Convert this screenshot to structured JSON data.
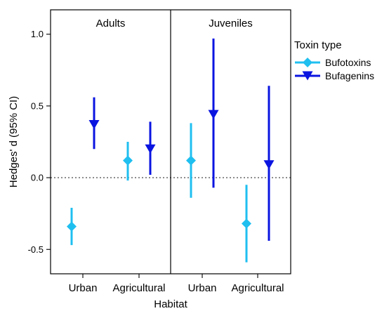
{
  "chart_data": {
    "type": "scatter",
    "subtype": "point-and-errorbar (dot-whisker) faceted by life stage",
    "xlabel": "Habitat",
    "ylabel": "Hedges' d (95% CI)",
    "categories": [
      "Urban",
      "Agricultural"
    ],
    "ylim": [
      -0.67,
      1.17
    ],
    "yticks": [
      {
        "value": 1.0,
        "label": "1.0"
      },
      {
        "value": 0.5,
        "label": "0.5"
      },
      {
        "value": 0.0,
        "label": "0.0"
      },
      {
        "value": -0.5,
        "label": "-0.5"
      }
    ],
    "reference_line": {
      "y": 0,
      "style": "dotted"
    },
    "grid": false,
    "legend": {
      "title": "Toxin type",
      "placement": "right"
    },
    "colors": {
      "Bufotoxins": "#1fbff0",
      "Bufagenins": "#0a14e0"
    },
    "markers": {
      "Bufotoxins": "diamond",
      "Bufagenins": "triangle-down"
    },
    "panels": [
      {
        "title": "Adults",
        "series": [
          {
            "name": "Bufotoxins",
            "points": [
              {
                "habitat": "Urban",
                "estimate": -0.34,
                "lower": -0.47,
                "upper": -0.21
              },
              {
                "habitat": "Agricultural",
                "estimate": 0.12,
                "lower": -0.02,
                "upper": 0.25
              }
            ]
          },
          {
            "name": "Bufagenins",
            "points": [
              {
                "habitat": "Urban",
                "estimate": 0.37,
                "lower": 0.2,
                "upper": 0.56
              },
              {
                "habitat": "Agricultural",
                "estimate": 0.2,
                "lower": 0.02,
                "upper": 0.39
              }
            ]
          }
        ]
      },
      {
        "title": "Juveniles",
        "series": [
          {
            "name": "Bufotoxins",
            "points": [
              {
                "habitat": "Urban",
                "estimate": 0.12,
                "lower": -0.14,
                "upper": 0.38
              },
              {
                "habitat": "Agricultural",
                "estimate": -0.32,
                "lower": -0.59,
                "upper": -0.05
              }
            ]
          },
          {
            "name": "Bufagenins",
            "points": [
              {
                "habitat": "Urban",
                "estimate": 0.44,
                "lower": -0.07,
                "upper": 0.97
              },
              {
                "habitat": "Agricultural",
                "estimate": 0.09,
                "lower": -0.44,
                "upper": 0.64
              }
            ]
          }
        ]
      }
    ]
  }
}
